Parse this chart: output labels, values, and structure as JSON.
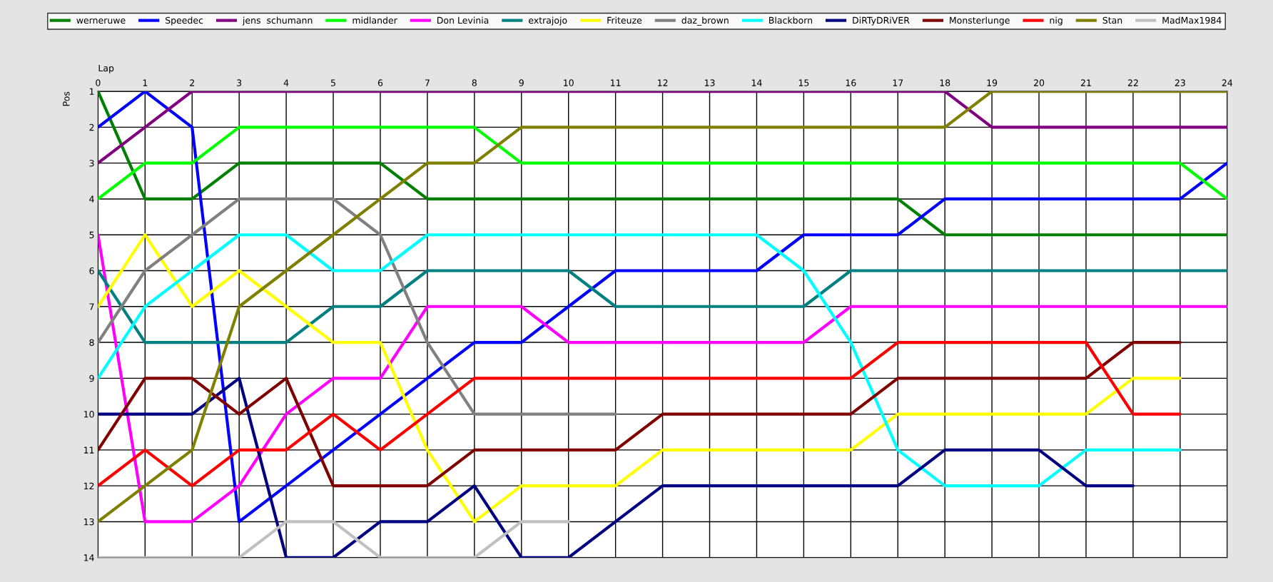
{
  "chart_data": {
    "type": "line",
    "xlabel": "Lap",
    "ylabel": "Pos",
    "x": [
      0,
      1,
      2,
      3,
      4,
      5,
      6,
      7,
      8,
      9,
      10,
      11,
      12,
      13,
      14,
      15,
      16,
      17,
      18,
      19,
      20,
      21,
      22,
      23,
      24
    ],
    "xlim": [
      0,
      24
    ],
    "xticks": [
      0,
      1,
      2,
      3,
      4,
      5,
      6,
      7,
      8,
      9,
      10,
      11,
      12,
      13,
      14,
      15,
      16,
      17,
      18,
      19,
      20,
      21,
      22,
      23,
      24
    ],
    "ylim": [
      14,
      1
    ],
    "yticks": [
      1,
      2,
      3,
      4,
      5,
      6,
      7,
      8,
      9,
      10,
      11,
      12,
      13,
      14
    ],
    "grid": true,
    "legend": "top",
    "marker": "none",
    "line_style": "solid",
    "series": [
      {
        "name": "werneruwe",
        "color": "#008000",
        "values": [
          1,
          4,
          4,
          3,
          3,
          3,
          3,
          4,
          4,
          4,
          4,
          4,
          4,
          4,
          4,
          4,
          4,
          4,
          5,
          5,
          5,
          5,
          5,
          5,
          5
        ]
      },
      {
        "name": "Speedec",
        "color": "#0000ff",
        "values": [
          2,
          1,
          2,
          13,
          12,
          11,
          10,
          9,
          8,
          8,
          7,
          6,
          6,
          6,
          6,
          5,
          5,
          5,
          4,
          4,
          4,
          4,
          4,
          4,
          3
        ]
      },
      {
        "name": "jens  schumann",
        "color": "#800080",
        "values": [
          3,
          2,
          1,
          1,
          1,
          1,
          1,
          1,
          1,
          1,
          1,
          1,
          1,
          1,
          1,
          1,
          1,
          1,
          1,
          2,
          2,
          2,
          2,
          2,
          2
        ]
      },
      {
        "name": "midlander",
        "color": "#00ff00",
        "values": [
          4,
          3,
          3,
          2,
          2,
          2,
          2,
          2,
          2,
          3,
          3,
          3,
          3,
          3,
          3,
          3,
          3,
          3,
          3,
          3,
          3,
          3,
          3,
          3,
          4
        ]
      },
      {
        "name": "Don Levinia",
        "color": "#ff00ff",
        "values": [
          5,
          13,
          13,
          12,
          10,
          9,
          9,
          7,
          7,
          7,
          8,
          8,
          8,
          8,
          8,
          8,
          7,
          7,
          7,
          7,
          7,
          7,
          7,
          7,
          7
        ]
      },
      {
        "name": "extrajojo",
        "color": "#008080",
        "values": [
          6,
          8,
          8,
          8,
          8,
          7,
          7,
          6,
          6,
          6,
          6,
          7,
          7,
          7,
          7,
          7,
          6,
          6,
          6,
          6,
          6,
          6,
          6,
          6,
          6
        ]
      },
      {
        "name": "Friteuze",
        "color": "#ffff00",
        "values": [
          7,
          5,
          7,
          6,
          7,
          8,
          8,
          11,
          13,
          12,
          12,
          12,
          11,
          11,
          11,
          11,
          11,
          10,
          10,
          10,
          10,
          10,
          9,
          9,
          null
        ]
      },
      {
        "name": "daz_brown",
        "color": "#808080",
        "values": [
          8,
          6,
          5,
          4,
          4,
          4,
          5,
          8,
          10,
          10,
          10,
          10,
          null,
          null,
          null,
          null,
          null,
          null,
          null,
          null,
          null,
          null,
          null,
          null,
          null
        ]
      },
      {
        "name": "Blackborn",
        "color": "#00ffff",
        "values": [
          9,
          7,
          6,
          5,
          5,
          6,
          6,
          5,
          5,
          5,
          5,
          5,
          5,
          5,
          5,
          6,
          8,
          11,
          12,
          12,
          12,
          11,
          11,
          11,
          null
        ]
      },
      {
        "name": "DiRTyDRiVER",
        "color": "#000080",
        "values": [
          10,
          10,
          10,
          9,
          14,
          14,
          13,
          13,
          12,
          14,
          14,
          13,
          12,
          12,
          12,
          12,
          12,
          12,
          11,
          11,
          11,
          12,
          12,
          null,
          null
        ]
      },
      {
        "name": "Monsterlunge",
        "color": "#800000",
        "values": [
          11,
          9,
          9,
          10,
          9,
          12,
          12,
          12,
          11,
          11,
          11,
          11,
          10,
          10,
          10,
          10,
          10,
          9,
          9,
          9,
          9,
          9,
          8,
          8,
          null
        ]
      },
      {
        "name": "nig",
        "color": "#ff0000",
        "values": [
          12,
          11,
          12,
          11,
          11,
          10,
          11,
          10,
          9,
          9,
          9,
          9,
          9,
          9,
          9,
          9,
          9,
          8,
          8,
          8,
          8,
          8,
          10,
          10,
          null
        ]
      },
      {
        "name": "Stan",
        "color": "#808000",
        "values": [
          13,
          12,
          11,
          7,
          6,
          5,
          4,
          3,
          3,
          2,
          2,
          2,
          2,
          2,
          2,
          2,
          2,
          2,
          2,
          1,
          1,
          1,
          1,
          1,
          1
        ]
      },
      {
        "name": "MadMax1984",
        "color": "#c0c0c0",
        "values": [
          14,
          14,
          14,
          14,
          13,
          13,
          14,
          14,
          14,
          13,
          13,
          null,
          null,
          null,
          null,
          null,
          null,
          null,
          null,
          null,
          null,
          null,
          null,
          null,
          null
        ]
      }
    ]
  }
}
